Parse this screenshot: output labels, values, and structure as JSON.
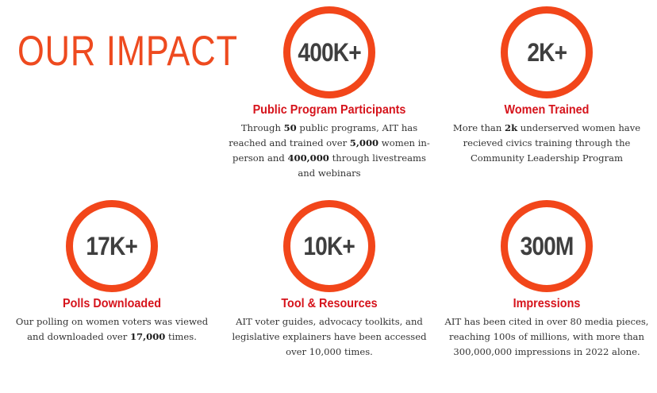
{
  "headline": "OUR IMPACT",
  "accent_color": "#f2461a",
  "label_color": "#d6141c",
  "stats": [
    {
      "value": "400K+",
      "label": "Public Program Participants",
      "desc": [
        "Through ",
        "50",
        " public programs, AIT has reached and trained over ",
        "5,000",
        " women in-person and ",
        "400,000",
        " through livestreams and webinars"
      ]
    },
    {
      "value": "2K+",
      "label": "Women Trained",
      "desc": [
        "More than ",
        "2k",
        " underserved women have recieved civics training through the Community Leadership Program"
      ]
    },
    {
      "value": "17K+",
      "label": "Polls Downloaded",
      "desc": [
        "Our polling on women voters was viewed and downloaded over ",
        "17,000",
        " times."
      ]
    },
    {
      "value": "10K+",
      "label": "Tool & Resources",
      "desc": [
        "AIT voter guides, advocacy toolkits, and legislative explainers have been accessed over 10,000 times."
      ]
    },
    {
      "value": "300M",
      "label": "Impressions",
      "desc": [
        "AIT has been cited in over 80 media pieces, reaching 100s of millions, with more than 300,000,000 impressions in 2022 alone."
      ]
    }
  ]
}
